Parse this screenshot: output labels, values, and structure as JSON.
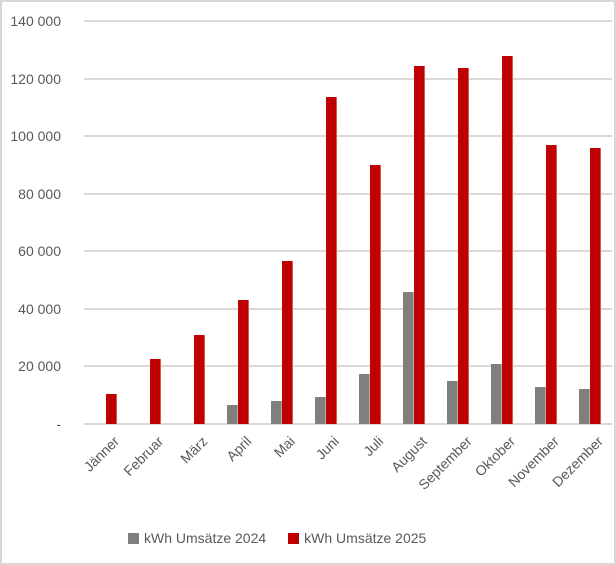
{
  "chart_data": {
    "type": "bar",
    "title": "",
    "categories": [
      "Jänner",
      "Februar",
      "März",
      "April",
      "Mai",
      "Juni",
      "Juli",
      "August",
      "September",
      "Oktober",
      "November",
      "Dezember"
    ],
    "series": [
      {
        "name": "kWh Umsätze 2024",
        "color": "#7F7F7F",
        "values": [
          0,
          0,
          0,
          6500,
          8000,
          9500,
          17500,
          46000,
          15000,
          21000,
          13000,
          12000
        ]
      },
      {
        "name": "kWh Umsätze 2025",
        "color": "#C00000",
        "values": [
          10500,
          22500,
          31000,
          43000,
          56500,
          113500,
          90000,
          124500,
          123500,
          128000,
          97000,
          96000
        ]
      }
    ],
    "xlabel": "",
    "ylabel": "",
    "ylim": [
      0,
      140000
    ],
    "ytick_step": 20000,
    "ytick_labels": [
      "-",
      "20 000",
      "40 000",
      "60 000",
      "80 000",
      "100 000",
      "120 000",
      "140 000"
    ],
    "grid": true,
    "legend_position": "bottom"
  },
  "colors": {
    "bar_2024": "#7F7F7F",
    "bar_2025": "#C00000",
    "gridline": "#D9D9D9",
    "axis_text": "#595959",
    "frame_border": "#D8D8D8",
    "background": "#FFFFFF"
  }
}
